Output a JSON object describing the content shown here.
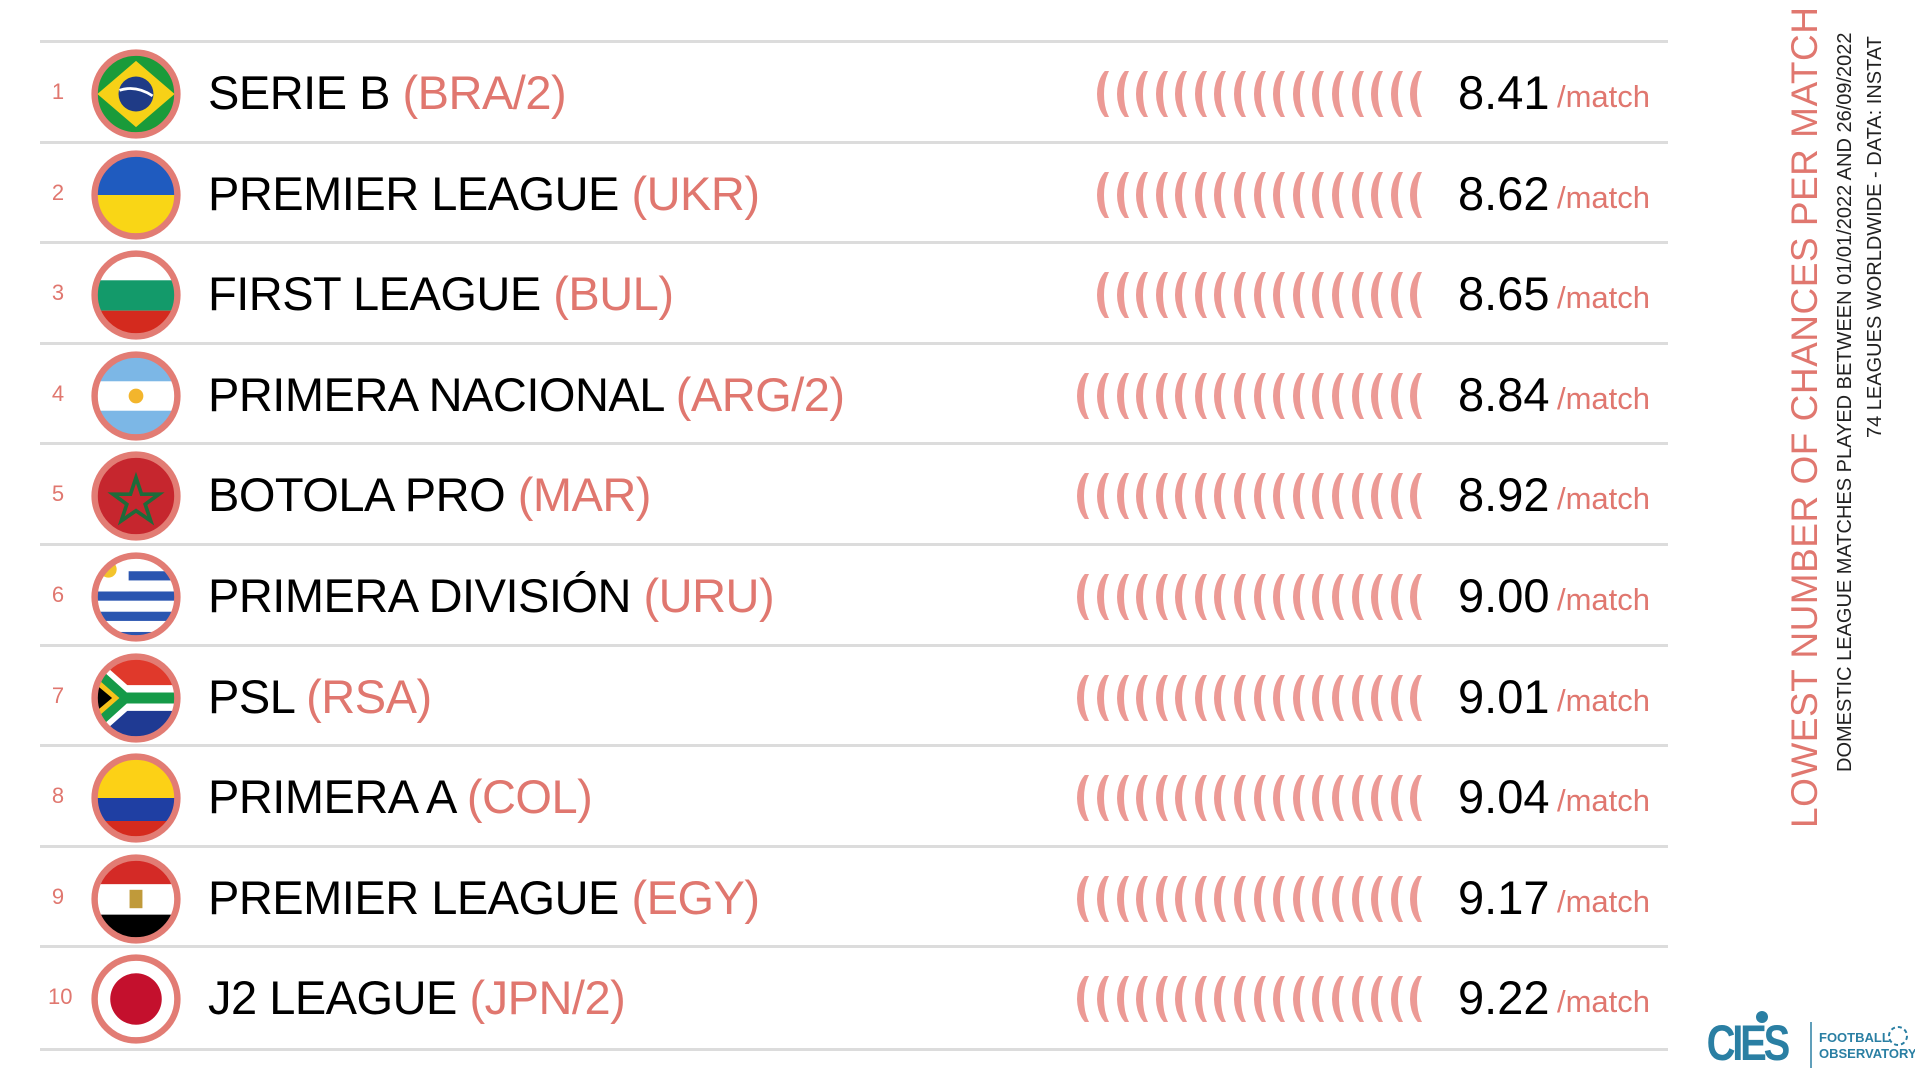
{
  "title": "LOWEST NUMBER OF CHANCES PER MATCH",
  "subtitle_line1": "DOMESTIC LEAGUE MATCHES PLAYED BETWEEN 01/01/2022 AND 26/09/2022",
  "subtitle_line2": "74 LEAGUES WORLDWIDE - DATA: INSTAT",
  "unit_label": "/match",
  "accent_color": "#e0776f",
  "logo": {
    "brand": "CIES",
    "text1": "FOOTBALL",
    "text2": "OBSERVATORY",
    "color": "#2a7fa3"
  },
  "rows": [
    {
      "rank": "1",
      "league": "SERIE B",
      "code": "(BRA/2)",
      "flag": "brazil",
      "value": "8.41",
      "arcs": 17
    },
    {
      "rank": "2",
      "league": "PREMIER LEAGUE",
      "code": "(UKR)",
      "flag": "ukraine",
      "value": "8.62",
      "arcs": 17
    },
    {
      "rank": "3",
      "league": "FIRST LEAGUE",
      "code": "(BUL)",
      "flag": "bulgaria",
      "value": "8.65",
      "arcs": 17
    },
    {
      "rank": "4",
      "league": "PRIMERA NACIONAL",
      "code": "(ARG/2)",
      "flag": "argentina",
      "value": "8.84",
      "arcs": 18
    },
    {
      "rank": "5",
      "league": "BOTOLA PRO",
      "code": "(MAR)",
      "flag": "morocco",
      "value": "8.92",
      "arcs": 18
    },
    {
      "rank": "6",
      "league": "PRIMERA DIVISIÓN",
      "code": "(URU)",
      "flag": "uruguay",
      "value": "9.00",
      "arcs": 18
    },
    {
      "rank": "7",
      "league": "PSL",
      "code": "(RSA)",
      "flag": "south-africa",
      "value": "9.01",
      "arcs": 18
    },
    {
      "rank": "8",
      "league": "PRIMERA A",
      "code": "(COL)",
      "flag": "colombia",
      "value": "9.04",
      "arcs": 18
    },
    {
      "rank": "9",
      "league": "PREMIER LEAGUE",
      "code": "(EGY)",
      "flag": "egypt",
      "value": "9.17",
      "arcs": 18
    },
    {
      "rank": "10",
      "league": "J2 LEAGUE",
      "code": "(JPN/2)",
      "flag": "japan",
      "value": "9.22",
      "arcs": 18
    }
  ]
}
